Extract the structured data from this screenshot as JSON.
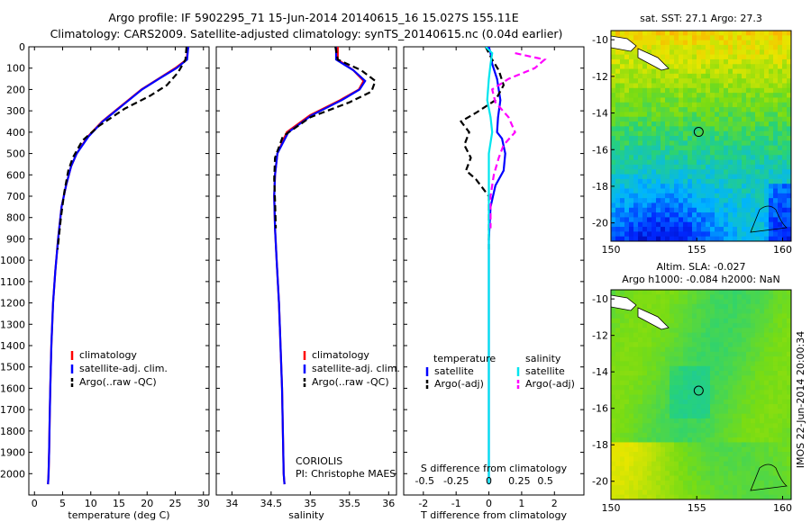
{
  "title": {
    "line1": "Argo profile: IF 5902295_71 15-Jun-2014 20140615_16 15.027S 155.11E",
    "line2": "Climatology: CARS2009. Satellite-adjusted climatology: synTS_20140615.nc (0.04d earlier)"
  },
  "colors": {
    "climatology": "#ff0000",
    "satellite": "#0000ff",
    "argo": "#000000",
    "sal_satellite": "#00e5ee",
    "sal_argo": "#ff00ff"
  },
  "timestamp": "IMOS 22-Jun-2014 20:00:34",
  "chart_data": [
    {
      "id": "temperature",
      "type": "line",
      "xlabel": "temperature (deg C)",
      "xlim": [
        -1,
        31
      ],
      "xticks": [
        0,
        5,
        10,
        15,
        20,
        25,
        30
      ],
      "ylim": [
        0,
        2100
      ],
      "yticks": [
        0,
        100,
        200,
        300,
        400,
        500,
        600,
        700,
        800,
        900,
        1000,
        1100,
        1200,
        1300,
        1400,
        1500,
        1600,
        1700,
        1800,
        1900,
        2000
      ],
      "legend": [
        "climatology",
        "satellite-adj. clim.",
        "Argo(..raw -QC)"
      ],
      "series": [
        {
          "name": "climatology",
          "style": "solid",
          "color": "#ff0000",
          "x": [
            27.3,
            27.0,
            25.0,
            22.0,
            19.0,
            15.5,
            12.0,
            9.5,
            7.5,
            6.5,
            5.6,
            4.8,
            4.2,
            3.7,
            3.3,
            3.0,
            2.8,
            2.7,
            2.6,
            2.5,
            2.4
          ],
          "y": [
            0,
            60,
            100,
            150,
            200,
            275,
            350,
            420,
            500,
            560,
            650,
            750,
            900,
            1050,
            1200,
            1400,
            1600,
            1750,
            1900,
            2000,
            2050
          ]
        },
        {
          "name": "satellite-adj. clim.",
          "style": "solid",
          "color": "#0000ff",
          "x": [
            27.3,
            27.1,
            25.2,
            22.1,
            19.1,
            15.6,
            12.1,
            9.6,
            7.5,
            6.5,
            5.6,
            4.8,
            4.2,
            3.7,
            3.3,
            3.0,
            2.8,
            2.7,
            2.6,
            2.5,
            2.4
          ],
          "y": [
            0,
            60,
            100,
            150,
            200,
            275,
            350,
            420,
            500,
            560,
            650,
            750,
            900,
            1050,
            1200,
            1400,
            1600,
            1750,
            1900,
            2000,
            2050
          ]
        },
        {
          "name": "Argo(..raw -QC)",
          "style": "dash",
          "color": "#000000",
          "x": [
            27.0,
            26.8,
            25.5,
            23.5,
            20.5,
            16.0,
            11.5,
            8.5,
            6.8,
            6.0,
            5.3,
            4.7,
            4.1
          ],
          "y": [
            0,
            60,
            120,
            180,
            230,
            290,
            370,
            440,
            520,
            580,
            680,
            800,
            950
          ]
        }
      ]
    },
    {
      "id": "salinity",
      "type": "line",
      "xlabel": "salinity",
      "xlim": [
        33.8,
        36.1
      ],
      "xticks": [
        34,
        34.5,
        35,
        35.5,
        36
      ],
      "ylim": [
        0,
        2100
      ],
      "legend": [
        "climatology",
        "satellite-adj. clim.",
        "Argo(..raw -QC)"
      ],
      "annotations": [
        "CORIOLIS",
        "PI: Christophe MAES"
      ],
      "series": [
        {
          "name": "climatology",
          "style": "solid",
          "color": "#ff0000",
          "x": [
            35.35,
            35.35,
            35.55,
            35.68,
            35.62,
            35.38,
            35.0,
            34.7,
            34.58,
            34.55,
            34.54,
            34.55,
            34.57,
            34.6,
            34.62,
            34.64,
            34.65,
            34.66,
            34.67
          ],
          "y": [
            0,
            60,
            110,
            160,
            200,
            250,
            320,
            400,
            500,
            600,
            700,
            850,
            1000,
            1200,
            1400,
            1600,
            1800,
            2000,
            2050
          ]
        },
        {
          "name": "satellite-adj. clim.",
          "style": "solid",
          "color": "#0000ff",
          "x": [
            35.33,
            35.33,
            35.55,
            35.7,
            35.63,
            35.4,
            35.02,
            34.72,
            34.58,
            34.55,
            34.54,
            34.55,
            34.57,
            34.6,
            34.62,
            34.64,
            34.65,
            34.66,
            34.67
          ],
          "y": [
            0,
            60,
            110,
            160,
            200,
            250,
            320,
            400,
            500,
            600,
            700,
            850,
            1000,
            1200,
            1400,
            1600,
            1800,
            2000,
            2050
          ]
        },
        {
          "name": "Argo(..raw -QC)",
          "style": "dash",
          "color": "#000000",
          "x": [
            35.32,
            35.35,
            35.65,
            35.83,
            35.78,
            35.5,
            35.0,
            34.65,
            34.55,
            34.54,
            34.55,
            34.56
          ],
          "y": [
            0,
            60,
            110,
            160,
            210,
            260,
            330,
            420,
            520,
            620,
            720,
            850
          ]
        }
      ]
    },
    {
      "id": "difference",
      "type": "line",
      "xlabel": "T difference from climatology",
      "xlabel2": "S difference from climatology",
      "xlim": [
        -2.6,
        2.9
      ],
      "xticks": [
        -2,
        -1,
        0,
        1,
        2
      ],
      "xticklabels2": [
        "-0.5",
        "-0.25",
        "0",
        "0.25",
        "0.5"
      ],
      "ylim": [
        0,
        2100
      ],
      "legend_groups": [
        {
          "heading": "temperature",
          "items": [
            "satellite",
            "Argo(-adj)"
          ]
        },
        {
          "heading": "salinity",
          "items": [
            "satellite",
            "Argo(-adj)"
          ]
        }
      ],
      "series": [
        {
          "name": "temperature satellite",
          "style": "solid",
          "color": "#0000ff",
          "x": [
            0,
            0.05,
            0.1,
            0.25,
            0.35,
            0.28,
            0.25,
            0.4,
            0.5,
            0.45,
            0.2,
            0.05,
            0,
            0
          ],
          "y": [
            0,
            30,
            80,
            150,
            250,
            330,
            400,
            430,
            500,
            580,
            650,
            750,
            900,
            2050
          ]
        },
        {
          "name": "temperature Argo(-adj)",
          "style": "dash",
          "color": "#000000",
          "x": [
            -0.1,
            0.1,
            0.3,
            0.45,
            0.2,
            -0.4,
            -0.85,
            -0.6,
            -0.75,
            -0.55,
            -0.7,
            -0.4,
            0,
            0,
            0
          ],
          "y": [
            0,
            60,
            110,
            180,
            250,
            310,
            350,
            400,
            460,
            520,
            580,
            620,
            700,
            900,
            950
          ]
        },
        {
          "name": "salinity satellite",
          "style": "solid",
          "color": "#00e5ee",
          "x": [
            -0.1,
            0.1,
            0.05,
            0,
            -0.05,
            0.05,
            0.1,
            0,
            0,
            0
          ],
          "y": [
            0,
            30,
            80,
            150,
            250,
            330,
            400,
            500,
            700,
            2050
          ]
        },
        {
          "name": "salinity Argo(-adj)",
          "style": "dash",
          "color": "#ff00ff",
          "x": [
            0.8,
            1.7,
            1.4,
            0.6,
            0.1,
            0.2,
            0.6,
            0.8,
            0.45,
            0.3,
            0.15,
            0.05,
            0.05
          ],
          "y": [
            30,
            60,
            100,
            150,
            200,
            260,
            330,
            400,
            460,
            520,
            600,
            700,
            850
          ]
        }
      ]
    },
    {
      "id": "sst-map",
      "type": "heatmap",
      "title": "sat. SST: 27.1  Argo: 27.3",
      "xlim": [
        150,
        160.5
      ],
      "xticks": [
        150,
        155,
        160
      ],
      "ylim": [
        -21,
        -9.5
      ],
      "yticks": [
        -10,
        -12,
        -14,
        -16,
        -18,
        -20
      ],
      "marker": {
        "lon": 155.11,
        "lat": -15.03
      }
    },
    {
      "id": "sla-map",
      "type": "heatmap",
      "title_line1": "Altim. SLA: -0.027",
      "title_line2": "Argo h1000: -0.084 h2000: NaN",
      "xlim": [
        150,
        160.5
      ],
      "xticks": [
        150,
        155,
        160
      ],
      "ylim": [
        -21,
        -9.5
      ],
      "yticks": [
        -10,
        -12,
        -14,
        -16,
        -18,
        -20
      ],
      "marker": {
        "lon": 155.11,
        "lat": -15.03
      }
    }
  ]
}
